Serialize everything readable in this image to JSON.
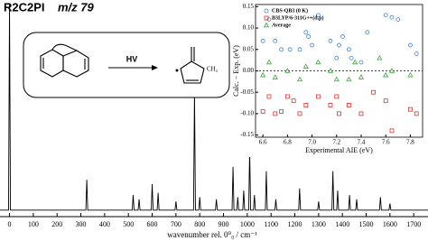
{
  "chart_data": [
    {
      "type": "line",
      "title": "R2C2PI",
      "subtitle": "m/z 79",
      "x_label": "wavenumber rel. 0⁰₀ / cm⁻¹",
      "xlim": [
        -40,
        1760
      ],
      "ylim": [
        0,
        1
      ],
      "xticks": [
        0,
        100,
        200,
        300,
        400,
        500,
        600,
        700,
        800,
        900,
        1000,
        1100,
        1200,
        1300,
        1400,
        1500,
        1600,
        1700
      ],
      "color": "#000000",
      "x": [
        -40,
        -4,
        0,
        4,
        321,
        325,
        329,
        516,
        520,
        524,
        541,
        545,
        549,
        596,
        600,
        604,
        621,
        625,
        629,
        696,
        700,
        704,
        774,
        778,
        782,
        796,
        800,
        804,
        866,
        870,
        874,
        936,
        940,
        944,
        956,
        960,
        964,
        981,
        985,
        989,
        1006,
        1010,
        1014,
        1026,
        1030,
        1034,
        1076,
        1080,
        1084,
        1116,
        1120,
        1124,
        1216,
        1220,
        1224,
        1296,
        1300,
        1304,
        1356,
        1360,
        1364,
        1376,
        1380,
        1384,
        1426,
        1430,
        1434,
        1456,
        1460,
        1464,
        1556,
        1560,
        1564,
        1596,
        1600,
        1604,
        1760
      ],
      "values": [
        0.03,
        0.03,
        0.98,
        0.03,
        0.03,
        0.17,
        0.03,
        0.03,
        0.1,
        0.03,
        0.03,
        0.08,
        0.03,
        0.03,
        0.15,
        0.03,
        0.03,
        0.11,
        0.03,
        0.03,
        0.07,
        0.03,
        0.03,
        0.58,
        0.03,
        0.03,
        0.09,
        0.03,
        0.03,
        0.08,
        0.03,
        0.03,
        0.23,
        0.03,
        0.03,
        0.09,
        0.03,
        0.03,
        0.12,
        0.03,
        0.03,
        0.31,
        0.03,
        0.03,
        0.1,
        0.03,
        0.03,
        0.21,
        0.03,
        0.03,
        0.08,
        0.03,
        0.03,
        0.13,
        0.03,
        0.03,
        0.07,
        0.03,
        0.03,
        0.21,
        0.03,
        0.03,
        0.12,
        0.03,
        0.03,
        0.1,
        0.03,
        0.03,
        0.08,
        0.03,
        0.03,
        0.09,
        0.03,
        0.03,
        0.06,
        0.03,
        0.03
      ]
    },
    {
      "type": "scatter",
      "x_label": "Experimental AIE (eV)",
      "y_label": "Calc. − Exp. (eV)",
      "xlim": [
        6.54,
        7.9
      ],
      "ylim": [
        -0.155,
        0.155
      ],
      "xticks": [
        6.6,
        6.8,
        {
          "value": 7,
          "label": "7.0"
        },
        7.2,
        7.4,
        7.6,
        7.8
      ],
      "yticks": [
        -0.15,
        {
          "value": -0.1,
          "label": "-0.10"
        },
        -0.05,
        {
          "value": 0,
          "label": "0.00"
        },
        0.05,
        {
          "value": 0.1,
          "label": "0.10"
        },
        0.15
      ],
      "hline": 0,
      "legend": "upper left",
      "series": [
        {
          "name": "CBS-QB3 (0 K)",
          "color": "#3a86d8",
          "marker": "circle",
          "x": [
            6.6,
            6.65,
            6.7,
            6.75,
            6.82,
            6.9,
            6.95,
            6.97,
            7.0,
            7.05,
            7.15,
            7.2,
            7.22,
            7.25,
            7.3,
            7.32,
            7.4,
            7.45,
            7.6,
            7.65,
            7.7,
            7.8,
            7.85
          ],
          "values": [
            0.07,
            0.12,
            0.07,
            0.05,
            0.05,
            0.05,
            0.09,
            0.08,
            0.06,
            0.13,
            0.07,
            0.03,
            0.06,
            0.08,
            0.05,
            0.03,
            0.02,
            0.09,
            0.13,
            0.125,
            0.12,
            0.06,
            0.04
          ]
        },
        {
          "name": "B3LYP/6-311G++(d,p)",
          "color": "#e03030",
          "marker": "square",
          "x": [
            6.6,
            6.65,
            6.7,
            6.75,
            6.8,
            6.85,
            6.9,
            6.95,
            7.05,
            7.15,
            7.2,
            7.22,
            7.3,
            7.4,
            7.5,
            7.6,
            7.65,
            7.8,
            7.85
          ],
          "values": [
            -0.095,
            -0.06,
            -0.1,
            -0.095,
            -0.06,
            -0.07,
            -0.1,
            -0.08,
            -0.06,
            -0.08,
            -0.06,
            -0.1,
            -0.08,
            -0.1,
            -0.05,
            -0.07,
            -0.14,
            -0.09,
            -0.1
          ]
        },
        {
          "name": "Average",
          "color": "#3aa83a",
          "marker": "triangle",
          "x": [
            6.6,
            6.65,
            6.7,
            6.8,
            6.9,
            6.95,
            7.05,
            7.15,
            7.2,
            7.3,
            7.35,
            7.4,
            7.55,
            7.6,
            7.65,
            7.8
          ],
          "values": [
            -0.01,
            0.02,
            -0.015,
            0,
            -0.02,
            0.01,
            0.02,
            0,
            -0.02,
            -0.02,
            0.02,
            -0.015,
            0.03,
            -0.01,
            0,
            -0.01
          ]
        }
      ]
    }
  ],
  "scheme": {
    "arrow_label": "HV",
    "group": "CH₂"
  }
}
